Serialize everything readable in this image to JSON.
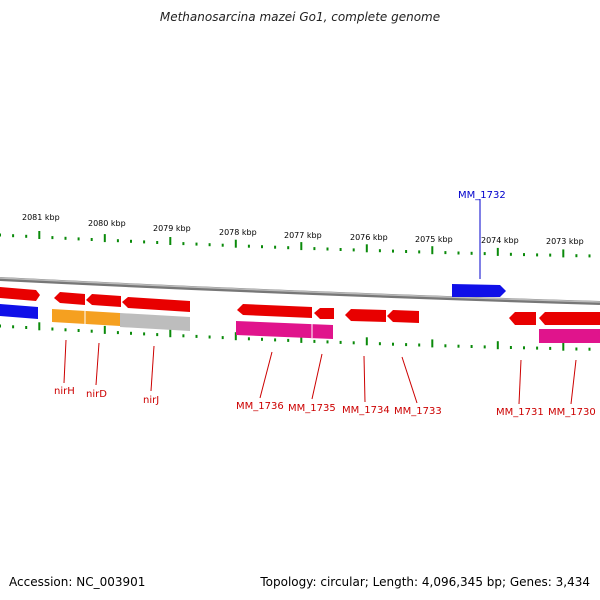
{
  "title": "Methanosarcina mazei Go1, complete genome",
  "footer": {
    "accession": "Accession: NC_003901",
    "summary": "Topology: circular; Length: 4,096,345 bp; Genes: 3,434"
  },
  "colors": {
    "forward_gene": "#e80000",
    "reverse_gene": "#1010e8",
    "orange_feature": "#f5a020",
    "gray_feature": "#bdbdbd",
    "magenta_feature": "#e0148c",
    "tick": "#0a8a0a",
    "backbone": "#8a8a8a",
    "label_red": "#cc0000",
    "label_blue": "#0000cc"
  },
  "ruler_labels": [
    "2081 kbp",
    "2080 kbp",
    "2079 kbp",
    "2078 kbp",
    "2077 kbp",
    "2076 kbp",
    "2075 kbp",
    "2074 kbp",
    "2073 kbp"
  ],
  "gene_labels": [
    {
      "text": "MM_1732",
      "color": "label_blue"
    },
    {
      "text": "nirH",
      "color": "label_red"
    },
    {
      "text": "nirD",
      "color": "label_red"
    },
    {
      "text": "nirJ",
      "color": "label_red"
    },
    {
      "text": "MM_1736",
      "color": "label_red"
    },
    {
      "text": "MM_1735",
      "color": "label_red"
    },
    {
      "text": "MM_1734",
      "color": "label_red"
    },
    {
      "text": "MM_1733",
      "color": "label_red"
    },
    {
      "text": "MM_1731",
      "color": "label_red"
    },
    {
      "text": "MM_1730",
      "color": "label_red"
    }
  ]
}
